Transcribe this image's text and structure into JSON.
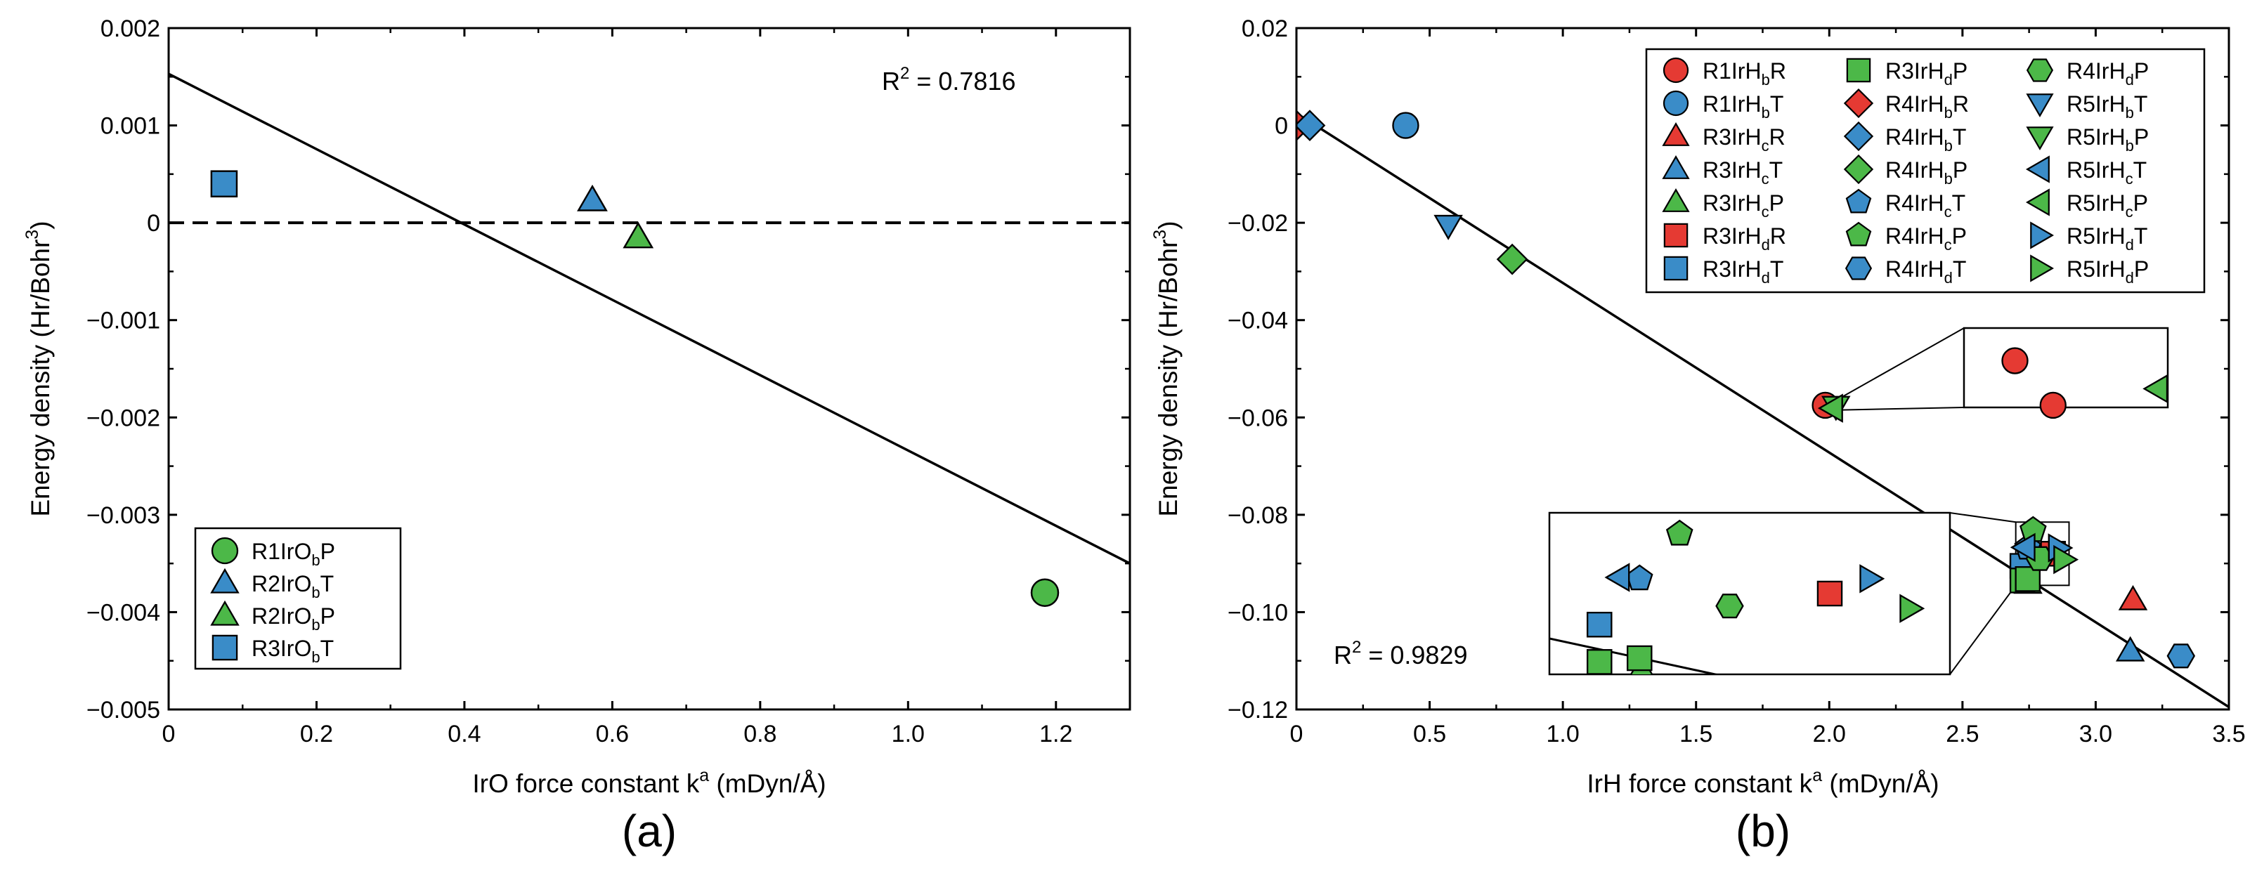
{
  "chart_data": [
    {
      "type": "scatter",
      "panel_label": "(a)",
      "xlabel": {
        "main": "IrO force constant k",
        "sup": "a",
        "unit": " (mDyn/Å)"
      },
      "ylabel": {
        "main": "Energy density (Hr/Bohr",
        "sup": "3",
        "end": ")"
      },
      "xlim": [
        0,
        1.3
      ],
      "ylim": [
        -0.005,
        0.002
      ],
      "xticks": [
        0,
        0.2,
        0.4,
        0.6,
        0.8,
        1.0,
        1.2
      ],
      "xtick_labels": [
        "0",
        "0.2",
        "0.4",
        "0.6",
        "0.8",
        "1.0",
        "1.2"
      ],
      "yticks": [
        -0.005,
        -0.004,
        -0.003,
        -0.002,
        -0.001,
        0,
        0.001,
        0.002
      ],
      "ytick_labels": [
        "−0.005",
        "−0.004",
        "−0.003",
        "−0.002",
        "−0.001",
        "0",
        "0.001",
        "0.002"
      ],
      "fit_line": {
        "x0": 0,
        "y0": 0.00153,
        "x1": 1.3,
        "y1": -0.0035
      },
      "zero_line": true,
      "r2": {
        "main": "R",
        "sup": "2",
        "rest": " = 0.7816"
      },
      "legend_position": "bottom-left",
      "series": [
        {
          "name": {
            "pre": "R1IrO",
            "sub": "b",
            "post": "P"
          },
          "marker": "circle",
          "color": "#4cb848",
          "x": [
            1.185
          ],
          "y": [
            -0.0038
          ]
        },
        {
          "name": {
            "pre": "R2IrO",
            "sub": "b",
            "post": "T"
          },
          "marker": "triangle-up",
          "color": "#3a8cc8",
          "x": [
            0.573
          ],
          "y": [
            0.00023
          ]
        },
        {
          "name": {
            "pre": "R2IrO",
            "sub": "b",
            "post": "P"
          },
          "marker": "triangle-up",
          "color": "#4cb848",
          "x": [
            0.635
          ],
          "y": [
            -0.00015
          ]
        },
        {
          "name": {
            "pre": "R3IrO",
            "sub": "b",
            "post": "T"
          },
          "marker": "square",
          "color": "#3a8cc8",
          "x": [
            0.075
          ],
          "y": [
            0.0004
          ]
        }
      ]
    },
    {
      "type": "scatter",
      "panel_label": "(b)",
      "xlabel": {
        "main": "IrH force constant k",
        "sup": "a",
        "unit": " (mDyn/Å)"
      },
      "ylabel": {
        "main": "Energy density (Hr/Bohr",
        "sup": "3",
        "end": ")"
      },
      "xlim": [
        0,
        3.5
      ],
      "ylim": [
        -0.12,
        0.02
      ],
      "xticks": [
        0,
        0.5,
        1.0,
        1.5,
        2.0,
        2.5,
        3.0,
        3.5
      ],
      "xtick_labels": [
        "0",
        "0.5",
        "1.0",
        "1.5",
        "2.0",
        "2.5",
        "3.0",
        "3.5"
      ],
      "yticks": [
        -0.12,
        -0.1,
        -0.08,
        -0.06,
        -0.04,
        -0.02,
        0,
        0.02
      ],
      "ytick_labels": [
        "−0.12",
        "−0.10",
        "−0.08",
        "−0.06",
        "−0.04",
        "−0.02",
        "0",
        "0.02"
      ],
      "fit_line": {
        "x0": 0,
        "y0": 0.0025,
        "x1": 3.5,
        "y1": -0.1195
      },
      "r2": {
        "main": "R",
        "sup": "2",
        "rest": " = 0.9829"
      },
      "legend_position": "top-right",
      "insets": [
        {
          "data_x": [
            1.975,
            2.015
          ],
          "data_y": [
            -0.0585,
            -0.0568
          ]
        },
        {
          "data_x": [
            2.7,
            2.9
          ],
          "data_y": [
            -0.0945,
            -0.0815
          ]
        }
      ],
      "series": [
        {
          "name": {
            "pre": "R1IrH",
            "sub": "b",
            "post": "R"
          },
          "marker": "circle",
          "color": "#e53a33",
          "x": [
            2.84,
            1.985
          ],
          "y": [
            -0.0575,
            -0.0575
          ]
        },
        {
          "name": {
            "pre": "R1IrH",
            "sub": "b",
            "post": "T"
          },
          "marker": "circle",
          "color": "#3a8cc8",
          "x": [
            0.41
          ],
          "y": [
            0.0
          ]
        },
        {
          "name": {
            "pre": "R3IrH",
            "sub": "c",
            "post": "R"
          },
          "marker": "triangle-up",
          "color": "#e53a33",
          "x": [
            3.14
          ],
          "y": [
            -0.0975
          ]
        },
        {
          "name": {
            "pre": "R3IrH",
            "sub": "c",
            "post": "T"
          },
          "marker": "triangle-up",
          "color": "#3a8cc8",
          "x": [
            3.13
          ],
          "y": [
            -0.108
          ]
        },
        {
          "name": {
            "pre": "R3IrH",
            "sub": "c",
            "post": "P"
          },
          "marker": "triangle-up",
          "color": "#4cb848",
          "x": [
            2.746
          ],
          "y": [
            -0.0941
          ]
        },
        {
          "name": {
            "pre": "R3IrH",
            "sub": "d",
            "post": "R"
          },
          "marker": "square",
          "color": "#e53a33",
          "x": [
            2.84
          ],
          "y": [
            -0.088
          ]
        },
        {
          "name": {
            "pre": "R3IrH",
            "sub": "d",
            "post": "T"
          },
          "marker": "square",
          "color": "#3a8cc8",
          "x": [
            2.725
          ],
          "y": [
            -0.0905
          ]
        },
        {
          "name": {
            "pre": "R3IrH",
            "sub": "d",
            "post": "P"
          },
          "marker": "square",
          "color": "#4cb848",
          "x": [
            2.725,
            2.745
          ],
          "y": [
            -0.0935,
            -0.0932
          ]
        },
        {
          "name": {
            "pre": "R4IrH",
            "sub": "b",
            "post": "R"
          },
          "marker": "diamond",
          "color": "#e53a33",
          "x": [
            0.0
          ],
          "y": [
            0.0
          ]
        },
        {
          "name": {
            "pre": "R4IrH",
            "sub": "b",
            "post": "T"
          },
          "marker": "diamond",
          "color": "#3a8cc8",
          "x": [
            0.05
          ],
          "y": [
            0.0
          ]
        },
        {
          "name": {
            "pre": "R4IrH",
            "sub": "b",
            "post": "P"
          },
          "marker": "diamond",
          "color": "#4cb848",
          "x": [
            0.81
          ],
          "y": [
            -0.0275
          ]
        },
        {
          "name": {
            "pre": "R4IrH",
            "sub": "c",
            "post": "T"
          },
          "marker": "pentagon",
          "color": "#3a8cc8",
          "x": [
            2.745
          ],
          "y": [
            -0.0868
          ]
        },
        {
          "name": {
            "pre": "R4IrH",
            "sub": "c",
            "post": "P"
          },
          "marker": "pentagon",
          "color": "#4cb848",
          "x": [
            2.765
          ],
          "y": [
            -0.0832
          ]
        },
        {
          "name": {
            "pre": "R4IrH",
            "sub": "d",
            "post": "T"
          },
          "marker": "hexagon",
          "color": "#3a8cc8",
          "x": [
            3.32
          ],
          "y": [
            -0.109
          ]
        },
        {
          "name": {
            "pre": "R4IrH",
            "sub": "d",
            "post": "P"
          },
          "marker": "hexagon",
          "color": "#4cb848",
          "x": [
            2.79
          ],
          "y": [
            -0.089
          ]
        },
        {
          "name": {
            "pre": "R5IrH",
            "sub": "b",
            "post": "T"
          },
          "marker": "triangle-down",
          "color": "#3a8cc8",
          "x": [
            0.57
          ],
          "y": [
            -0.0205
          ]
        },
        {
          "name": {
            "pre": "R5IrH",
            "sub": "b",
            "post": "P"
          },
          "marker": "triangle-down",
          "color": "#4cb848",
          "x": [
            2.025
          ],
          "y": [
            -0.0577
          ]
        },
        {
          "name": {
            "pre": "R5IrH",
            "sub": "c",
            "post": "T"
          },
          "marker": "triangle-left",
          "color": "#3a8cc8",
          "x": [
            2.735
          ],
          "y": [
            -0.0867
          ]
        },
        {
          "name": {
            "pre": "R5IrH",
            "sub": "c",
            "post": "P"
          },
          "marker": "triangle-left",
          "color": "#4cb848",
          "x": [
            2.013
          ],
          "y": [
            -0.0581
          ]
        },
        {
          "name": {
            "pre": "R5IrH",
            "sub": "d",
            "post": "T"
          },
          "marker": "triangle-right",
          "color": "#3a8cc8",
          "x": [
            2.86
          ],
          "y": [
            -0.0868
          ]
        },
        {
          "name": {
            "pre": "R5IrH",
            "sub": "d",
            "post": "P"
          },
          "marker": "triangle-right",
          "color": "#4cb848",
          "x": [
            2.88
          ],
          "y": [
            -0.0892
          ]
        }
      ]
    }
  ]
}
